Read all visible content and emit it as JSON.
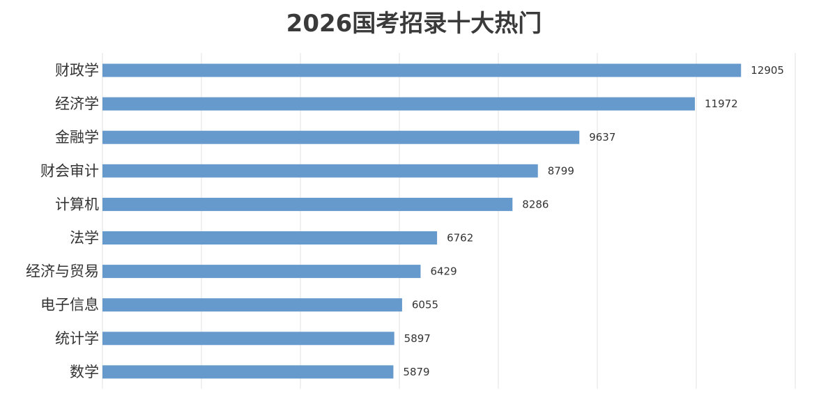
{
  "chart_data": {
    "type": "bar",
    "orientation": "horizontal",
    "title": "2026国考招录十大热门",
    "categories": [
      "财政学",
      "经济学",
      "金融学",
      "财会审计",
      "计算机",
      "法学",
      "经济与贸易",
      "电子信息",
      "统计学",
      "数学"
    ],
    "values": [
      12905,
      11972,
      9637,
      8799,
      8286,
      6762,
      6429,
      6055,
      5897,
      5879
    ],
    "xlim": [
      0,
      14000
    ],
    "grid_step": 2000,
    "grid": true,
    "xlabel": "",
    "ylabel": "",
    "bar_color": "#6699cc",
    "legend": "none"
  }
}
